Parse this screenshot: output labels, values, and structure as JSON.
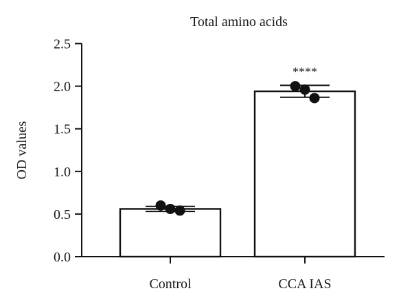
{
  "chart_data": {
    "type": "bar",
    "title": "Total amino acids",
    "xlabel": "",
    "ylabel": "OD values",
    "ylim": [
      0,
      2.5
    ],
    "yticks": [
      "0.0",
      "0.5",
      "1.0",
      "1.5",
      "2.0",
      "2.5"
    ],
    "categories": [
      "Control",
      "CCA IAS"
    ],
    "values": [
      0.56,
      1.94
    ],
    "error": [
      0.03,
      0.07
    ],
    "points": [
      [
        0.6,
        0.56,
        0.54
      ],
      [
        2.0,
        1.96,
        1.86
      ]
    ],
    "annotations": [
      "",
      "****"
    ],
    "grid": false,
    "colors": {
      "bar_fill": "#ffffff",
      "stroke": "#111111",
      "point": "#111111"
    }
  }
}
